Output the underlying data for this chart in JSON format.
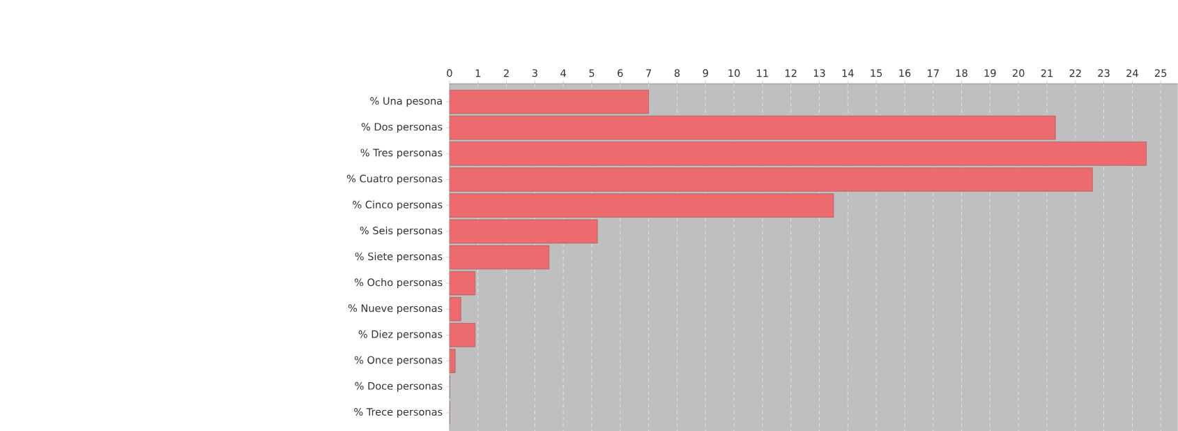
{
  "chart_data": {
    "type": "bar",
    "orientation": "horizontal",
    "categories": [
      "% Una pesona",
      "% Dos personas",
      "% Tres personas",
      "% Cuatro personas",
      "% Cinco personas",
      "% Seis personas",
      "% Siete personas",
      "% Ocho personas",
      "% Nueve personas",
      "% Diez personas",
      "% Once personas",
      "% Doce personas",
      "% Trece personas"
    ],
    "values": [
      7.0,
      21.3,
      24.5,
      22.6,
      13.5,
      5.2,
      3.5,
      0.9,
      0.4,
      0.9,
      0.2,
      0,
      0
    ],
    "color": "#ec6b6e",
    "xlim": [
      0,
      25.6
    ],
    "xticks": [
      0,
      1,
      2,
      3,
      4,
      5,
      6,
      7,
      8,
      9,
      10,
      11,
      12,
      13,
      14,
      15,
      16,
      17,
      18,
      19,
      20,
      21,
      22,
      23,
      24,
      25
    ],
    "grid": "x"
  }
}
